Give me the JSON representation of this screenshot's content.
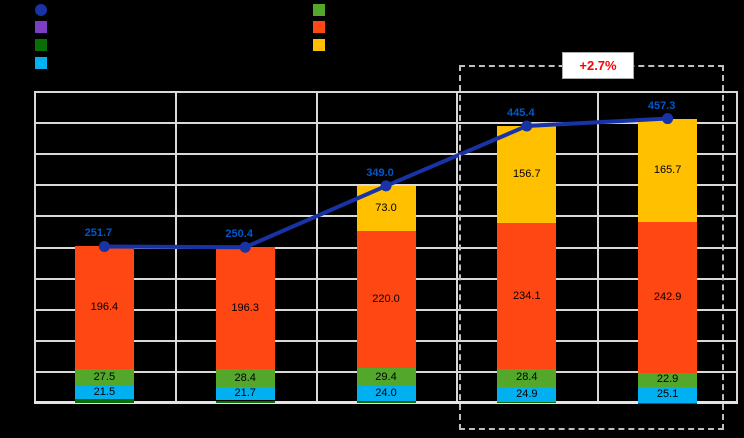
{
  "annotation": {
    "growth_label": "+2.7%",
    "color": "#FF0000"
  },
  "legend": {
    "labels_visible": false,
    "left_items": [
      {
        "name": "total-line",
        "marker": "circle",
        "color": "#1733A5"
      },
      {
        "name": "segment-purple",
        "marker": "square",
        "color": "#7C3FC4"
      },
      {
        "name": "segment-dark-green",
        "marker": "square",
        "color": "#086F08"
      },
      {
        "name": "segment-cyan",
        "marker": "square",
        "color": "#00B0F0"
      }
    ],
    "right_items": [
      {
        "name": "segment-green",
        "marker": "square",
        "color": "#53A82C"
      },
      {
        "name": "segment-orange-red",
        "marker": "square",
        "color": "#FF4713"
      },
      {
        "name": "segment-orange",
        "marker": "square",
        "color": "#FFC000"
      }
    ]
  },
  "chart_data": {
    "type": "bar",
    "subtype": "stacked-bars-with-total-line",
    "title": "",
    "xlabel": "",
    "ylabel": "",
    "categories": [
      "",
      "",
      "",
      "",
      ""
    ],
    "series": [
      {
        "name": "dark-green-base",
        "color": "#086F08",
        "values": [
          6.3,
          4.0,
          2.6,
          1.3,
          0.7
        ],
        "labels": [
          "",
          "",
          "",
          "",
          ""
        ]
      },
      {
        "name": "cyan",
        "color": "#00B0F0",
        "values": [
          21.5,
          21.7,
          24.0,
          24.9,
          25.1
        ],
        "labels": [
          "21.5",
          "21.7",
          "24.0",
          "24.9",
          "25.1"
        ]
      },
      {
        "name": "green",
        "color": "#53A82C",
        "values": [
          27.5,
          28.4,
          29.4,
          28.4,
          22.9
        ],
        "labels": [
          "27.5",
          "28.4",
          "29.4",
          "28.4",
          "22.9"
        ]
      },
      {
        "name": "orange-red",
        "color": "#FF4713",
        "values": [
          196.4,
          196.3,
          220.0,
          234.1,
          242.9
        ],
        "labels": [
          "196.4",
          "196.3",
          "220.0",
          "234.1",
          "242.9"
        ]
      },
      {
        "name": "orange",
        "color": "#FFC000",
        "values": [
          0,
          0,
          73.0,
          156.7,
          165.7
        ],
        "labels": [
          "",
          "",
          "73.0",
          "156.7",
          "165.7"
        ]
      }
    ],
    "line_series": {
      "name": "total",
      "color": "#1733A5",
      "label_color": "#0057CB",
      "values": [
        251.7,
        250.4,
        349.0,
        445.4,
        457.3
      ],
      "labels": [
        "251.7",
        "250.4",
        "349.0",
        "445.4",
        "457.3"
      ]
    },
    "ylim": [
      0,
      500
    ],
    "gridline_step": 50,
    "grid": true,
    "legend_position": "top",
    "highlight": {
      "last_n_categories": 2,
      "annotation": "+2.7%"
    }
  }
}
